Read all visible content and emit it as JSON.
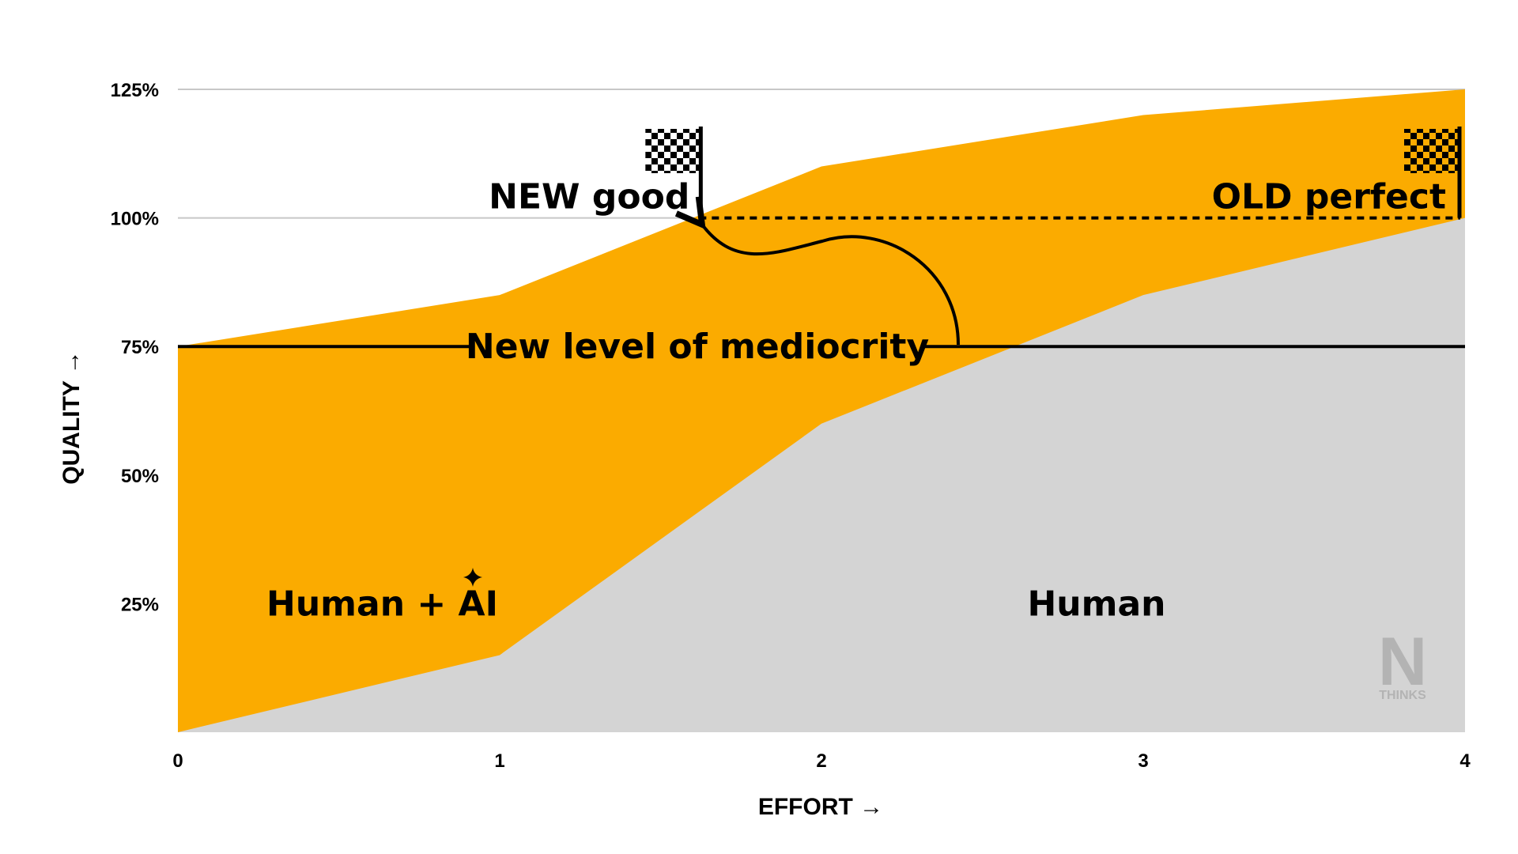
{
  "chart_data": {
    "type": "area",
    "x": [
      0,
      1,
      2,
      3,
      4
    ],
    "series": [
      {
        "name": "Human",
        "values": [
          0,
          15,
          60,
          85,
          100
        ],
        "color": "#d4d4d4"
      },
      {
        "name": "Human + AI",
        "values": [
          75,
          85,
          110,
          120,
          125
        ],
        "color": "#fbab00"
      }
    ],
    "xlabel": "EFFORT →",
    "ylabel": "QUALITY →",
    "xlim": [
      0,
      4
    ],
    "ylim": [
      0,
      125
    ],
    "x_ticks": [
      "0",
      "1",
      "2",
      "3",
      "4"
    ],
    "y_ticks": [
      {
        "value": 25,
        "label": "25%"
      },
      {
        "value": 50,
        "label": "50%"
      },
      {
        "value": 75,
        "label": "75%"
      },
      {
        "value": 100,
        "label": "100%"
      },
      {
        "value": 125,
        "label": "125%"
      }
    ],
    "gridlines": [
      100,
      125
    ],
    "grid_color": "#c8c8c8",
    "reference_line": {
      "value": 75,
      "label": "New level of mediocrity"
    },
    "dashed_line": {
      "value": 100,
      "x_from": 1.62,
      "x_to": 4
    },
    "annotations": {
      "new_good": {
        "label": "NEW good",
        "x": 1.62,
        "y": 100
      },
      "old_perfect": {
        "label": "OLD perfect",
        "x": 4,
        "y": 100
      },
      "human_ai": {
        "label": "Human + AI",
        "x": 0.55,
        "y": 25
      },
      "human": {
        "label": "Human",
        "x": 2.85,
        "y": 25
      }
    },
    "watermark": {
      "letter": "N",
      "word": "THINKS"
    }
  }
}
